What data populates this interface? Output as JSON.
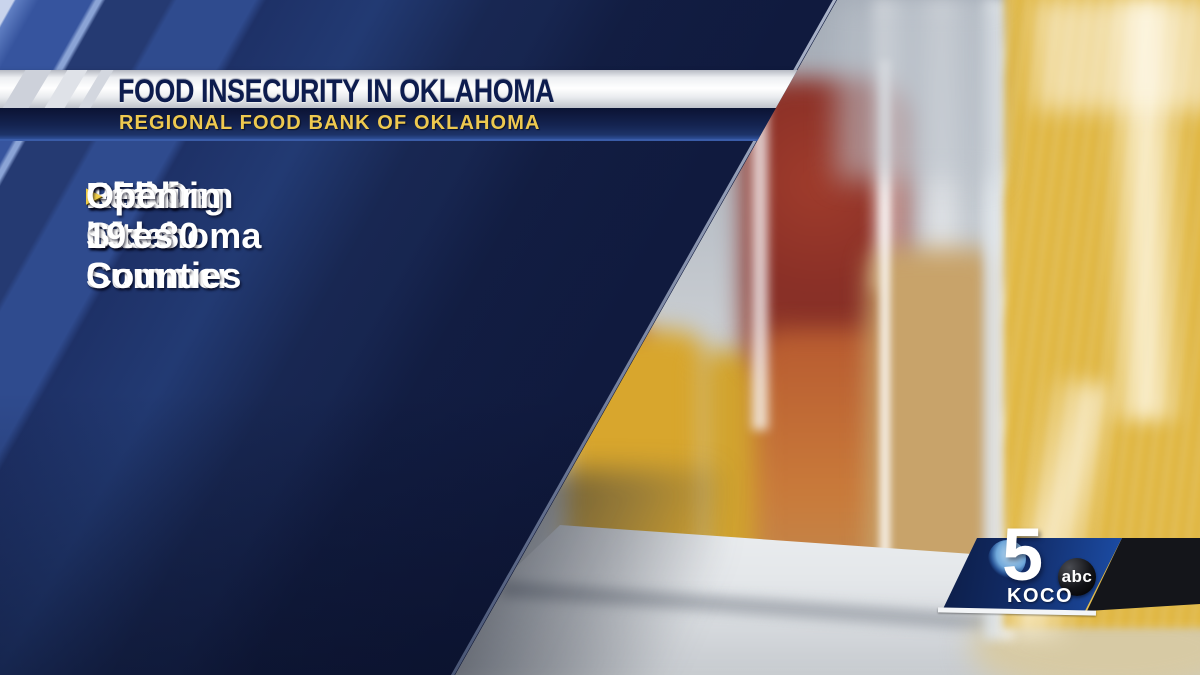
{
  "header": {
    "title": "FOOD INSECURITY IN OKLAHOMA",
    "subtitle": "REGIONAL FOOD BANK OF OKLAHOMA"
  },
  "bullets": {
    "glyph": "▶",
    "items": [
      {
        "line1": "1 in 4 Oklahoma",
        "line2": "Children"
      },
      {
        "line1": "RFBO has 80 Summer",
        "line2": "Feeding Sites"
      },
      {
        "line1": "Open in 19 Counties",
        "line2": ""
      }
    ]
  },
  "logo": {
    "channel_number": "5",
    "network": "abc",
    "station": "KOCO"
  },
  "colors": {
    "accent_gold": "#f0cc49",
    "panel_navy": "#16244e",
    "headline_navy": "#0d1c4e",
    "subtitle_gold": "#eec94f"
  }
}
